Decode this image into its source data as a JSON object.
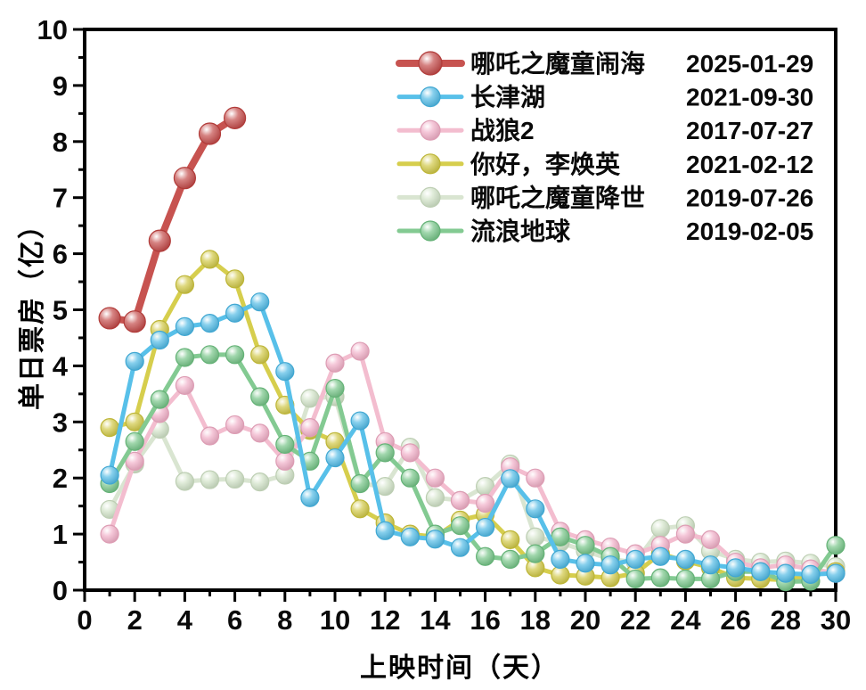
{
  "chart_data": {
    "type": "line",
    "title": "",
    "xlabel": "上映时间（天）",
    "ylabel": "单日票房（亿）",
    "x_range": [
      0,
      30
    ],
    "y_range": [
      0,
      10
    ],
    "x_tick_step": 2,
    "x_minor_tick_step": 1,
    "y_tick_step": 1,
    "y_minor_tick_step": 0.5,
    "x_tick_labels": [
      "0",
      "2",
      "4",
      "6",
      "8",
      "10",
      "12",
      "14",
      "16",
      "18",
      "20",
      "22",
      "24",
      "26",
      "28",
      "30"
    ],
    "y_tick_labels": [
      "0",
      "1",
      "2",
      "3",
      "4",
      "5",
      "6",
      "7",
      "8",
      "9",
      "10"
    ],
    "grid": false,
    "legend_position": "top-center-inside",
    "x": [
      1,
      2,
      3,
      4,
      5,
      6,
      7,
      8,
      9,
      10,
      11,
      12,
      13,
      14,
      15,
      16,
      17,
      18,
      19,
      20,
      21,
      22,
      23,
      24,
      25,
      26,
      27,
      28,
      29,
      30
    ],
    "series": [
      {
        "key": "nezha2",
        "name": "哪吒之魔童闹海",
        "release_date": "2025-01-29",
        "color": "#c75350",
        "marker_color": "#c0403e",
        "emphasis": "thick",
        "values": [
          4.85,
          4.79,
          6.23,
          7.35,
          8.14,
          8.42
        ]
      },
      {
        "key": "changjinhu",
        "name": "长津湖",
        "release_date": "2021-09-30",
        "color": "#58c0e9",
        "marker_color": "#46b6e4",
        "emphasis": "normal",
        "values": [
          2.05,
          4.08,
          4.46,
          4.7,
          4.76,
          4.94,
          5.14,
          3.9,
          1.65,
          2.36,
          3.02,
          1.06,
          0.95,
          0.91,
          0.76,
          1.12,
          1.99,
          1.45,
          0.55,
          0.48,
          0.45,
          0.55,
          0.6,
          0.55,
          0.45,
          0.4,
          0.33,
          0.3,
          0.28,
          0.3
        ]
      },
      {
        "key": "zhanlang2",
        "name": "战狼2",
        "release_date": "2017-07-27",
        "color": "#f3bdcf",
        "marker_color": "#f0abc4",
        "emphasis": "normal",
        "values": [
          1.0,
          2.3,
          3.15,
          3.65,
          2.75,
          2.95,
          2.8,
          2.3,
          2.9,
          4.05,
          4.26,
          2.65,
          2.45,
          2.0,
          1.6,
          1.55,
          2.2,
          2.0,
          1.05,
          0.9,
          0.77,
          0.65,
          0.8,
          1.0,
          0.9,
          0.5,
          0.4,
          0.45,
          0.38,
          0.3
        ]
      },
      {
        "key": "lihuanying",
        "name": "你好，李焕英",
        "release_date": "2021-02-12",
        "color": "#d6ce4d",
        "marker_color": "#cdc53c",
        "emphasis": "normal",
        "values": [
          2.9,
          3.0,
          4.65,
          5.45,
          5.9,
          5.55,
          4.2,
          3.3,
          2.85,
          2.65,
          1.45,
          1.2,
          1.0,
          0.95,
          1.25,
          1.35,
          0.9,
          0.4,
          0.27,
          0.25,
          0.22,
          0.3,
          0.65,
          0.52,
          0.4,
          0.22,
          0.2,
          0.18,
          0.27,
          0.33
        ]
      },
      {
        "key": "nezha1",
        "name": "哪吒之魔童降世",
        "release_date": "2019-07-26",
        "color": "#d9e5d1",
        "marker_color": "#cde0c3",
        "emphasis": "normal",
        "values": [
          1.44,
          2.25,
          2.87,
          1.94,
          1.97,
          1.98,
          1.93,
          2.05,
          3.42,
          3.45,
          1.9,
          1.85,
          2.55,
          1.65,
          1.6,
          1.85,
          2.25,
          0.95,
          0.85,
          0.7,
          0.55,
          0.5,
          1.1,
          1.15,
          0.7,
          0.55,
          0.5,
          0.52,
          0.48,
          0.42
        ]
      },
      {
        "key": "liulangdiqiu",
        "name": "流浪地球",
        "release_date": "2019-02-05",
        "color": "#83ca92",
        "marker_color": "#6ec181",
        "emphasis": "normal",
        "values": [
          1.9,
          2.65,
          3.4,
          4.15,
          4.2,
          4.2,
          3.45,
          2.6,
          2.3,
          3.6,
          1.9,
          2.45,
          2.0,
          1.0,
          1.15,
          0.6,
          0.55,
          0.65,
          0.95,
          0.8,
          0.6,
          0.2,
          0.22,
          0.2,
          0.2,
          0.33,
          0.33,
          0.15,
          0.16,
          0.8
        ]
      }
    ],
    "axis_color": "#000000",
    "background_color": "#ffffff"
  }
}
